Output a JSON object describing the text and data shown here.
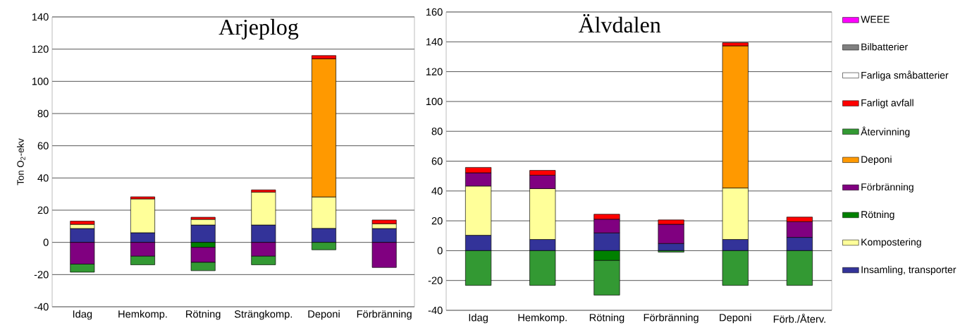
{
  "chart_data": [
    {
      "type": "bar",
      "title": "Arjeplog",
      "ylabel": "Ton O$_{2}$-ekv",
      "stacked": true,
      "grid": "y",
      "legend": false,
      "categories": [
        "Idag",
        "Hemkomp.",
        "Rötning",
        "Strängkomp.",
        "Deponi",
        "Förbränning"
      ],
      "ylim": [
        -40,
        140
      ],
      "yticks": [
        -40,
        -20,
        0,
        20,
        40,
        60,
        80,
        100,
        120,
        140
      ],
      "series": [
        {
          "color": "#333399",
          "values": [
            8.6,
            6,
            10.8,
            10.8,
            8.7,
            8.6
          ]
        },
        {
          "color": "#ffff99",
          "values": [
            2.6,
            21,
            3.5,
            20.4,
            19.5,
            3
          ]
        },
        {
          "color": "#008000",
          "values": [
            0,
            0,
            -3.1,
            0,
            0,
            0
          ]
        },
        {
          "color": "#800080",
          "values": [
            -13.5,
            -8.6,
            -9.3,
            -8.6,
            0,
            -15.6
          ]
        },
        {
          "color": "#ff9900",
          "values": [
            0,
            0,
            0,
            0,
            85.8,
            0
          ]
        },
        {
          "color": "#339933",
          "values": [
            -5,
            -5.3,
            -5.2,
            -5.3,
            -4.6,
            0
          ]
        },
        {
          "color": "#ff0000",
          "values": [
            2,
            1.3,
            1.3,
            1.4,
            2,
            2.3
          ]
        },
        {
          "color": "#ffffff",
          "values": [
            0,
            0,
            0,
            0,
            0,
            0
          ]
        },
        {
          "color": "#808080",
          "values": [
            0,
            0,
            0,
            0,
            0,
            0
          ]
        },
        {
          "color": "#ff00ff",
          "values": [
            0,
            0,
            0,
            0,
            0,
            0
          ]
        }
      ]
    },
    {
      "type": "bar",
      "title": "Älvdalen",
      "stacked": true,
      "grid": "y",
      "legend": "right",
      "categories": [
        "Idag",
        "Hemkomp.",
        "Rötning",
        "Förbränning",
        "Deponi",
        "Förb./Återv."
      ],
      "ylim": [
        -40,
        160
      ],
      "yticks": [
        -40,
        -20,
        0,
        20,
        40,
        60,
        80,
        100,
        120,
        140,
        160
      ],
      "series": [
        {
          "name": "Insamling, transporter",
          "color": "#333399",
          "values": [
            10.3,
            7.5,
            11.9,
            4.8,
            7.5,
            8.9
          ]
        },
        {
          "name": "Kompostering",
          "color": "#ffff99",
          "values": [
            33,
            34.1,
            0,
            0,
            34.5,
            0
          ]
        },
        {
          "name": "Rötning",
          "color": "#008000",
          "values": [
            0,
            0,
            -6.6,
            0,
            0,
            0
          ]
        },
        {
          "name": "Förbränning",
          "color": "#800080",
          "values": [
            8.9,
            9,
            9.2,
            12.9,
            0,
            10.6
          ]
        },
        {
          "name": "Deponi",
          "color": "#ff9900",
          "values": [
            0,
            0,
            0,
            0,
            95.3,
            0
          ]
        },
        {
          "name": "Återvinning",
          "color": "#339933",
          "values": [
            -23.3,
            -23.3,
            -23.2,
            -1,
            -23.3,
            -23.3
          ]
        },
        {
          "name": "Farligt avfall",
          "color": "#ff0000",
          "values": [
            3.6,
            3.2,
            3.3,
            2.9,
            2.1,
            3
          ]
        },
        {
          "name": "Farliga småbatterier",
          "color": "#ffffff",
          "values": [
            0,
            0,
            0,
            0,
            0,
            0
          ]
        },
        {
          "name": "Bilbatterier",
          "color": "#808080",
          "values": [
            0,
            0,
            0,
            0,
            0,
            0
          ]
        },
        {
          "name": "WEEE",
          "color": "#ff00ff",
          "values": [
            0,
            0,
            0,
            0,
            0,
            0
          ]
        }
      ]
    }
  ]
}
